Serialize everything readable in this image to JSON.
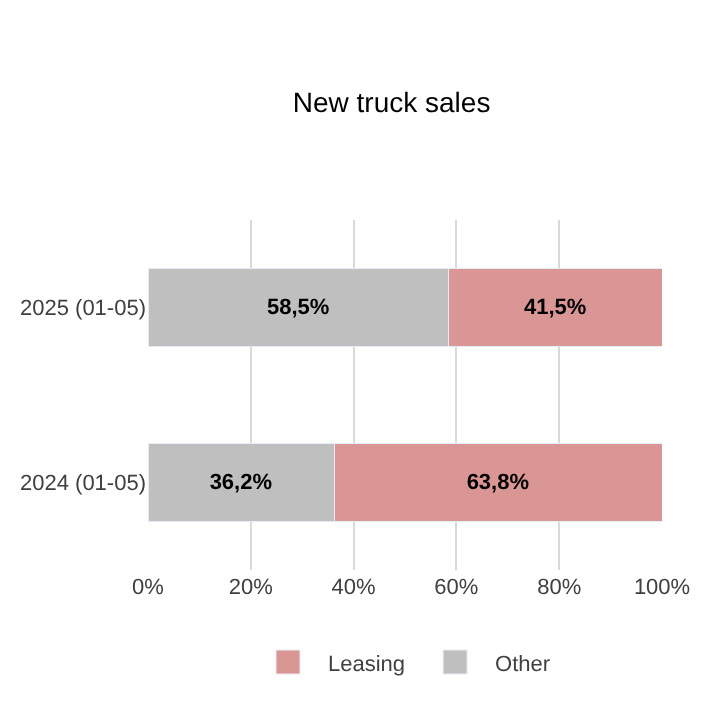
{
  "chart_data": {
    "type": "bar",
    "orientation": "horizontal",
    "stacked": true,
    "title": "New truck sales",
    "categories": [
      "2025 (01-05)",
      "2024 (01-05)"
    ],
    "series": [
      {
        "name": "Other",
        "color": "#bfbfbf",
        "values": [
          58.5,
          36.2
        ],
        "value_labels": [
          "58,5%",
          "36,2%"
        ]
      },
      {
        "name": "Leasing",
        "color": "#da9694",
        "values": [
          41.5,
          63.8
        ],
        "value_labels": [
          "41,5%",
          "63,8%"
        ]
      }
    ],
    "xlim": [
      0,
      100
    ],
    "xticks": [
      {
        "value": 0,
        "label": "0%"
      },
      {
        "value": 20,
        "label": "20%"
      },
      {
        "value": 40,
        "label": "40%"
      },
      {
        "value": 60,
        "label": "60%"
      },
      {
        "value": 80,
        "label": "80%"
      },
      {
        "value": 100,
        "label": "100%"
      }
    ],
    "grid": "x",
    "legend": "bottom"
  }
}
